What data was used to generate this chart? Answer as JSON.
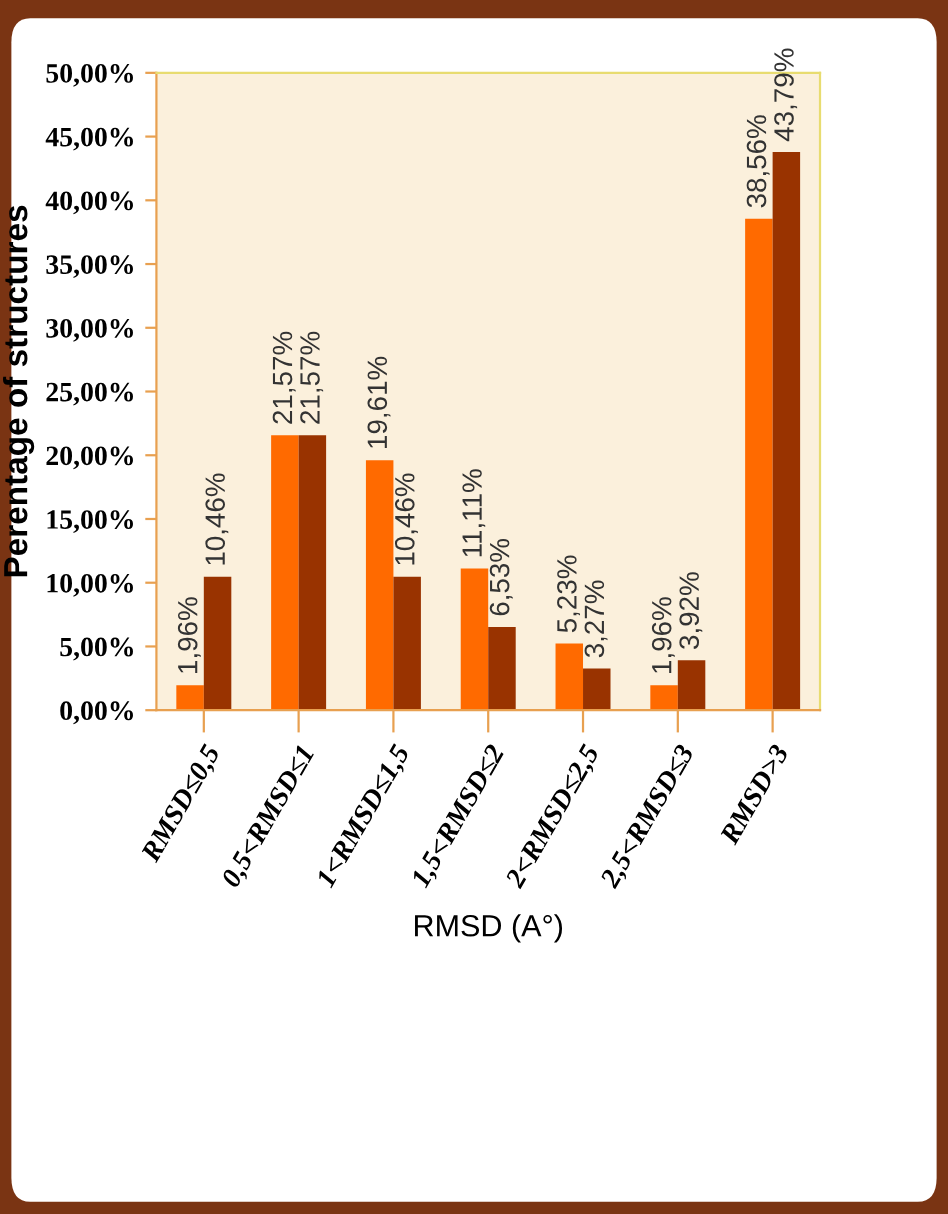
{
  "chart_data": {
    "type": "bar",
    "xlabel": "RMSD (A°)",
    "ylabel": "Perentage of structures",
    "categories": [
      "RMSD≤0,5",
      "0,5<RMSD≤1",
      "1<RMSD≤1,5",
      "1,5<RMSD≤2",
      "2<RMSD≤2,5",
      "2,5<RMSD≤3",
      "RMSD>3"
    ],
    "series": [
      {
        "color": "#ff6a00",
        "values": [
          1.96,
          21.57,
          19.61,
          11.11,
          5.23,
          1.96,
          38.56
        ],
        "value_labels": [
          "1,96%",
          "21,57%",
          "19,61%",
          "11,11%",
          "5,23%",
          "1,96%",
          "38,56%"
        ]
      },
      {
        "color": "#993300",
        "values": [
          10.46,
          21.57,
          10.46,
          6.53,
          3.27,
          3.92,
          43.79
        ],
        "value_labels": [
          "10,46%",
          "21,57%",
          "10,46%",
          "6,53%",
          "3,27%",
          "3,92%",
          "43,79%"
        ]
      }
    ],
    "ylim": [
      0,
      50
    ],
    "yticks": [
      {
        "value": 0,
        "label": "0,00%"
      },
      {
        "value": 5,
        "label": "5,00%"
      },
      {
        "value": 10,
        "label": "10,00%"
      },
      {
        "value": 15,
        "label": "15,00%"
      },
      {
        "value": 20,
        "label": "20,00%"
      },
      {
        "value": 25,
        "label": "25,00%"
      },
      {
        "value": 30,
        "label": "30,00%"
      },
      {
        "value": 35,
        "label": "35,00%"
      },
      {
        "value": 40,
        "label": "40,00%"
      },
      {
        "value": 45,
        "label": "45,00%"
      },
      {
        "value": 50,
        "label": "50,00%"
      }
    ],
    "grid": false,
    "legend": false
  }
}
